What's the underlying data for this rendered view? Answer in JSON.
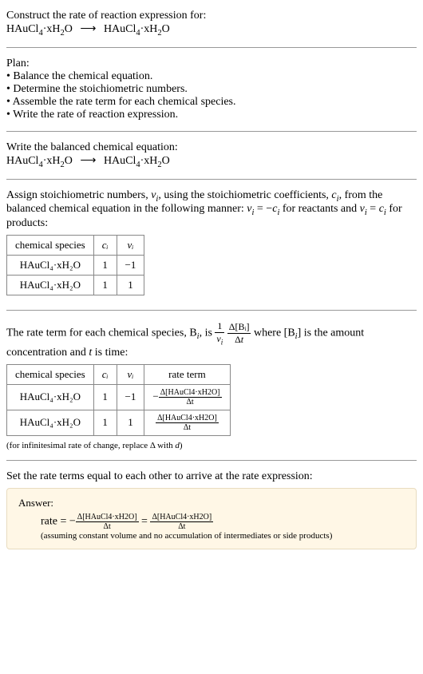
{
  "prompt": {
    "line1": "Construct the rate of reaction expression for:",
    "reactant": "HAuCl",
    "r_sub1": "4",
    "hydrate": "·xH",
    "r_sub2": "2",
    "r_tail": "O",
    "arrow": "⟶",
    "product": "HAuCl",
    "p_sub1": "4",
    "p_hydrate": "·xH",
    "p_sub2": "2",
    "p_tail": "O"
  },
  "plan": {
    "heading": "Plan:",
    "items": [
      "• Balance the chemical equation.",
      "• Determine the stoichiometric numbers.",
      "• Assemble the rate term for each chemical species.",
      "• Write the rate of reaction expression."
    ]
  },
  "balanced": {
    "heading": "Write the balanced chemical equation:"
  },
  "assign": {
    "text_a": "Assign stoichiometric numbers, ",
    "nu_i": "ν",
    "nu_sub": "i",
    "text_b": ", using the stoichiometric coefficients, ",
    "c_i": "c",
    "c_sub": "i",
    "text_c": ", from the balanced chemical equation in the following manner: ",
    "rel1a": "ν",
    "rel1b": " = −",
    "rel1c": "c",
    "text_d": " for reactants and ",
    "rel2a": "ν",
    "rel2b": " = ",
    "rel2c": "c",
    "text_e": " for products:"
  },
  "table1": {
    "h1": "chemical species",
    "h2": "cᵢ",
    "h3": "νᵢ",
    "rows": [
      {
        "sp": "HAuCl₄·xH₂O",
        "c": "1",
        "nu": "−1"
      },
      {
        "sp": "HAuCl₄·xH₂O",
        "c": "1",
        "nu": "1"
      }
    ]
  },
  "rateterm": {
    "text_a": "The rate term for each chemical species, B",
    "text_b": ", is ",
    "frac1_num": "1",
    "frac1_den_a": "ν",
    "frac1_den_sub": "i",
    "frac2_num": "Δ[Bᵢ]",
    "frac2_den": "Δt",
    "text_c": " where [B",
    "text_d": "] is the amount concentration and ",
    "t": "t",
    "text_e": " is time:"
  },
  "table2": {
    "h1": "chemical species",
    "h2": "cᵢ",
    "h3": "νᵢ",
    "h4": "rate term",
    "rows": [
      {
        "sp": "HAuCl₄·xH₂O",
        "c": "1",
        "nu": "−1",
        "rt_sign": "−",
        "rt_num": "Δ[HAuCl4·xH2O]",
        "rt_den": "Δt"
      },
      {
        "sp": "HAuCl₄·xH₂O",
        "c": "1",
        "nu": "1",
        "rt_sign": "",
        "rt_num": "Δ[HAuCl4·xH2O]",
        "rt_den": "Δt"
      }
    ]
  },
  "footnote": "(for infinitesimal rate of change, replace Δ with d)",
  "setequal": "Set the rate terms equal to each other to arrive at the rate expression:",
  "answer": {
    "label": "Answer:",
    "rate": "rate = −",
    "num": "Δ[HAuCl4·xH2O]",
    "den": "Δt",
    "eq": " = ",
    "assumption": "(assuming constant volume and no accumulation of intermediates or side products)"
  },
  "colors": {
    "answer_bg": "#fff7e6",
    "answer_border": "#e8dcc0",
    "rule": "#999999",
    "table_border": "#888888"
  }
}
